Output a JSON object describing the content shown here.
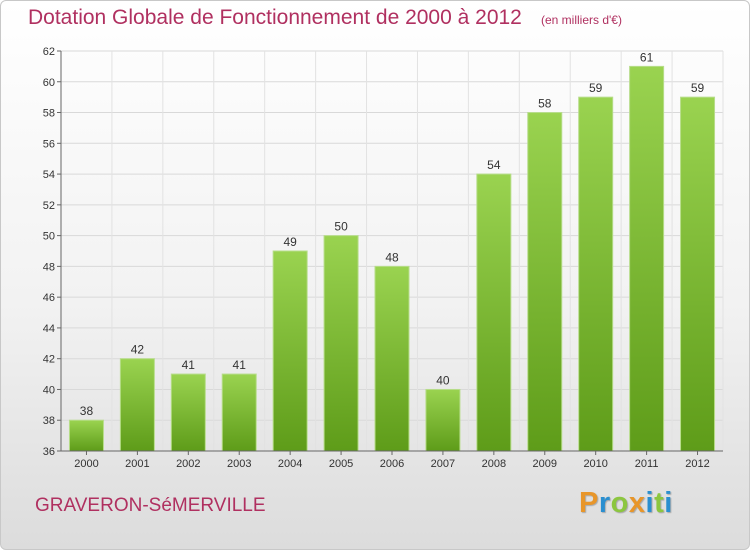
{
  "chart_data": {
    "type": "bar",
    "title": "Dotation Globale de Fonctionnement de 2000 à 2012",
    "subtitle": "(en milliers d'€)",
    "categories": [
      "2000",
      "2001",
      "2002",
      "2003",
      "2004",
      "2005",
      "2006",
      "2007",
      "2008",
      "2009",
      "2010",
      "2011",
      "2012"
    ],
    "values": [
      38,
      42,
      41,
      41,
      49,
      50,
      48,
      40,
      54,
      58,
      59,
      61,
      59
    ],
    "ylim": [
      36,
      62
    ],
    "yticks": [
      36,
      38,
      40,
      42,
      44,
      46,
      48,
      50,
      52,
      54,
      56,
      58,
      60,
      62
    ],
    "xlabel": "",
    "ylabel": "",
    "grid": true,
    "bar_color": "#7cc13a"
  },
  "footer": {
    "commune": "GRAVERON-SéMERVILLE",
    "logo_letters": [
      "P",
      "r",
      "o",
      "x",
      "i",
      "t",
      "i"
    ],
    "logo_colors": [
      "#e8962a",
      "#2a8fd0",
      "#8cc63f",
      "#e8962a",
      "#2a8fd0",
      "#8cc63f",
      "#2a8fd0"
    ]
  }
}
